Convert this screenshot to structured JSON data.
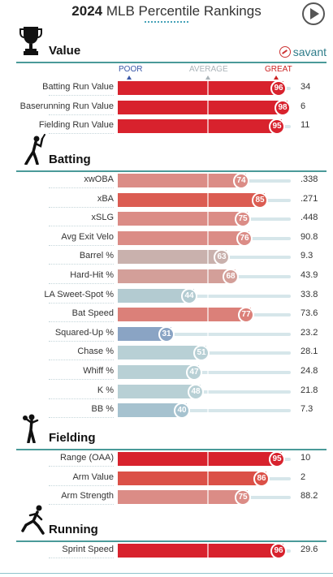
{
  "header": {
    "year": "2024",
    "title": "MLB Percentile Rankings"
  },
  "brand": {
    "logo_text": "savant"
  },
  "scale": {
    "poor": "POOR",
    "average": "AVERAGE",
    "great": "GREAT"
  },
  "colors": {
    "accent": "#4a9a99",
    "great": "#d8222d",
    "poor": "#3a58a8"
  },
  "sections": [
    {
      "title": "Value",
      "icon": "trophy-icon",
      "rows": [
        {
          "label": "Batting Run Value",
          "pct": 96,
          "value": "34",
          "color": "#d8222d"
        },
        {
          "label": "Baserunning Run Value",
          "pct": 98,
          "value": "6",
          "color": "#d8222d"
        },
        {
          "label": "Fielding Run Value",
          "pct": 95,
          "value": "11",
          "color": "#d8222d"
        }
      ]
    },
    {
      "title": "Batting",
      "icon": "batter-icon",
      "rows": [
        {
          "label": "xwOBA",
          "pct": 74,
          "value": ".338",
          "color": "#db8c86"
        },
        {
          "label": "xBA",
          "pct": 85,
          "value": ".271",
          "color": "#db5c52"
        },
        {
          "label": "xSLG",
          "pct": 75,
          "value": ".448",
          "color": "#db8c86"
        },
        {
          "label": "Avg Exit Velo",
          "pct": 76,
          "value": "90.8",
          "color": "#db8c86"
        },
        {
          "label": "Barrel %",
          "pct": 63,
          "value": "9.3",
          "color": "#c9b1ad"
        },
        {
          "label": "Hard-Hit %",
          "pct": 68,
          "value": "43.9",
          "color": "#d39f99"
        },
        {
          "label": "LA Sweet-Spot %",
          "pct": 44,
          "value": "33.8",
          "color": "#b3cbd1"
        },
        {
          "label": "Bat Speed",
          "pct": 77,
          "value": "73.6",
          "color": "#db8079"
        },
        {
          "label": "Squared-Up %",
          "pct": 31,
          "value": "23.2",
          "color": "#8aa4c4"
        },
        {
          "label": "Chase %",
          "pct": 51,
          "value": "28.1",
          "color": "#b8d0d5"
        },
        {
          "label": "Whiff %",
          "pct": 47,
          "value": "24.8",
          "color": "#b8d0d5"
        },
        {
          "label": "K %",
          "pct": 48,
          "value": "21.8",
          "color": "#b8d0d5"
        },
        {
          "label": "BB %",
          "pct": 40,
          "value": "7.3",
          "color": "#a6c2cf"
        }
      ]
    },
    {
      "title": "Fielding",
      "icon": "fielder-icon",
      "rows": [
        {
          "label": "Range (OAA)",
          "pct": 95,
          "value": "10",
          "color": "#d8222d"
        },
        {
          "label": "Arm Value",
          "pct": 86,
          "value": "2",
          "color": "#db5047"
        },
        {
          "label": "Arm Strength",
          "pct": 75,
          "value": "88.2",
          "color": "#db8c86"
        }
      ]
    },
    {
      "title": "Running",
      "icon": "runner-icon",
      "rows": [
        {
          "label": "Sprint Speed",
          "pct": 96,
          "value": "29.6",
          "color": "#d8222d"
        }
      ]
    }
  ]
}
